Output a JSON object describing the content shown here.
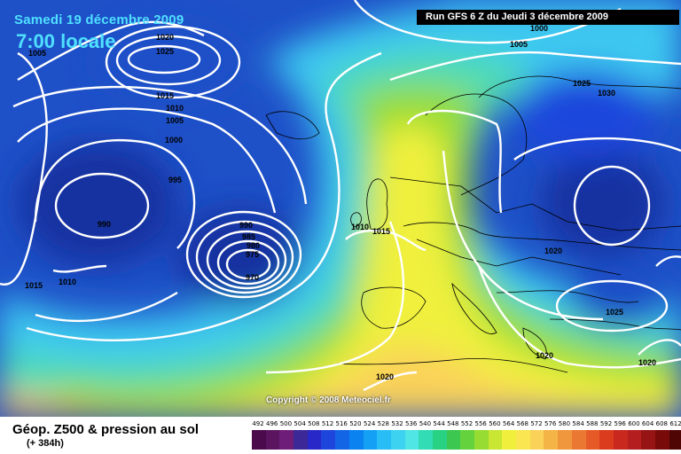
{
  "header": {
    "date": "Samedi 19 décembre 2009",
    "time": "7:00 locale",
    "run": "Run GFS 6 Z du Jeudi 3 décembre 2009"
  },
  "footer": {
    "title": "Géop. Z500 & pression au sol",
    "subtitle": "(+ 384h)",
    "copyright": "Copyright © 2008 Meteociel.fr"
  },
  "scale": {
    "labels": [
      "492",
      "496",
      "500",
      "504",
      "508",
      "512",
      "516",
      "520",
      "524",
      "528",
      "532",
      "536",
      "540",
      "544",
      "548",
      "552",
      "556",
      "560",
      "564",
      "568",
      "572",
      "576",
      "580",
      "584",
      "588",
      "592",
      "596",
      "600",
      "604",
      "608",
      "612"
    ],
    "colors": [
      "#4b0a4b",
      "#5a1460",
      "#6e1e78",
      "#3c2896",
      "#2828c8",
      "#1e46dc",
      "#1464e6",
      "#0a82f0",
      "#14a0f5",
      "#28bef5",
      "#3cd2f0",
      "#50e6e6",
      "#32dcb4",
      "#28d282",
      "#3cc850",
      "#64d23c",
      "#96dc32",
      "#c8e632",
      "#f0f03c",
      "#fae650",
      "#fad25a",
      "#f5b446",
      "#f0963c",
      "#eb7832",
      "#e65a28",
      "#dc3c1e",
      "#c8281e",
      "#b41e1e",
      "#961414",
      "#780a0a",
      "#500505"
    ]
  },
  "isobar_labels": [
    {
      "text": "1020"
    },
    {
      "text": "1025"
    },
    {
      "text": "1005"
    },
    {
      "text": "1015"
    },
    {
      "text": "1010"
    },
    {
      "text": "1005"
    },
    {
      "text": "1000"
    },
    {
      "text": "995"
    },
    {
      "text": "990"
    },
    {
      "text": "990"
    },
    {
      "text": "985"
    },
    {
      "text": "980"
    },
    {
      "text": "975"
    },
    {
      "text": "970"
    },
    {
      "text": "1015"
    },
    {
      "text": "1010"
    },
    {
      "text": "1010"
    },
    {
      "text": "1015"
    },
    {
      "text": "1000"
    },
    {
      "text": "1005"
    },
    {
      "text": "1025"
    },
    {
      "text": "1030"
    },
    {
      "text": "1020"
    },
    {
      "text": "1025"
    },
    {
      "text": "1020"
    },
    {
      "text": "1020"
    },
    {
      "text": "1020"
    }
  ]
}
